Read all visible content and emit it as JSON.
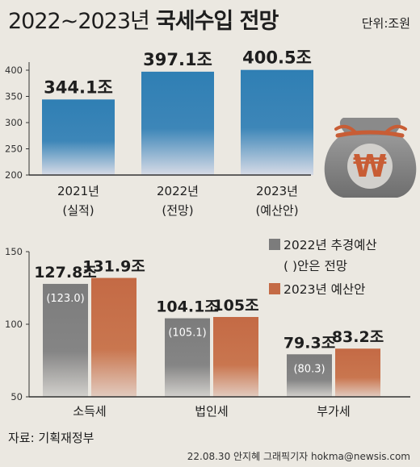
{
  "title_main": "2022~2023년",
  "title_bold": "국세수입 전망",
  "unit_label": "단위:조원",
  "source": "자료: 기획재정부",
  "credit": "22.08.30 안지혜 그래픽기자 hokma@newsis.com",
  "money_bag_symbol": "₩",
  "colors": {
    "top_bar": "#2f7fb4",
    "gray_bar": "#7c7c7c",
    "orange_bar": "#c46a45",
    "background": "#ebe8e1"
  },
  "legend": {
    "gray_line1": "2022년 추경예산",
    "gray_line2": "( )안은 전망",
    "orange": "2023년 예산안"
  },
  "chart_data": [
    {
      "type": "bar",
      "title": "",
      "categories": [
        "2021년 (실적)",
        "2022년 (전망)",
        "2023년 (예산안)"
      ],
      "cat_line1": [
        "2021년",
        "2022년",
        "2023년"
      ],
      "cat_line2": [
        "(실적)",
        "(전망)",
        "(예산안)"
      ],
      "values": [
        344.1,
        397.1,
        400.5
      ],
      "data_labels": [
        "344.1조",
        "397.1조",
        "400.5조"
      ],
      "ylim": [
        200,
        400
      ],
      "yticks": [
        200,
        250,
        300,
        350,
        400
      ],
      "grid": false
    },
    {
      "type": "bar",
      "title": "",
      "categories": [
        "소득세",
        "법인세",
        "부가세"
      ],
      "series": [
        {
          "name": "2022년 추경예산",
          "values": [
            127.8,
            104.1,
            79.3
          ],
          "labels": [
            "127.8조",
            "104.1조",
            "79.3조"
          ]
        },
        {
          "name": "2023년 예산안",
          "values": [
            131.9,
            105,
            83.2
          ],
          "labels": [
            "131.9조",
            "105조",
            "83.2조"
          ]
        }
      ],
      "forecast_values": [
        123.0,
        105.1,
        80.3
      ],
      "forecast_labels": [
        "(123.0)",
        "(105.1)",
        "(80.3)"
      ],
      "ylim": [
        50,
        150
      ],
      "yticks": [
        50,
        100,
        150
      ],
      "legend_position": "top-right",
      "grid": false
    }
  ]
}
